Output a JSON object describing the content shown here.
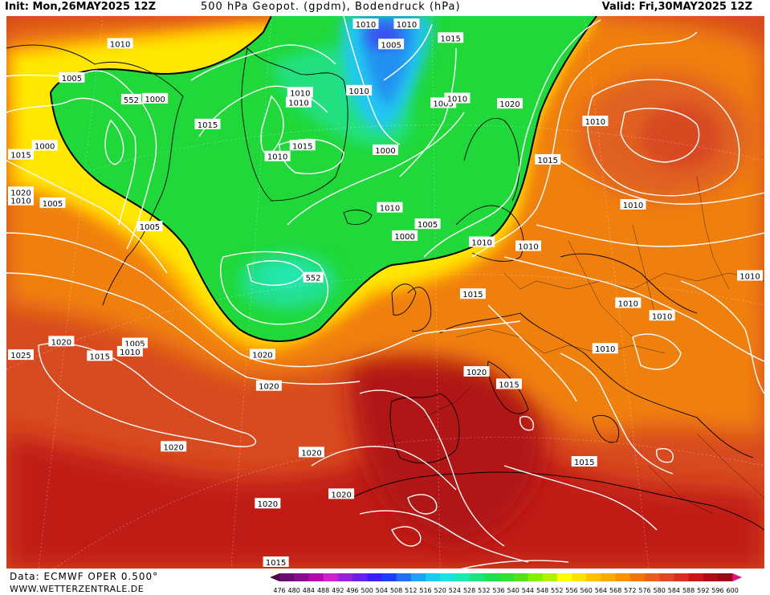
{
  "header": {
    "init": "Init: Mon,26MAY2025 12Z",
    "title": "500 hPa Geopot. (gpdm), Bodendruck (hPa)",
    "valid": "Valid: Fri,30MAY2025 12Z"
  },
  "footer": {
    "data_source": "Data: ECMWF OPER 0.500°",
    "website": "WWW.WETTERZENTRALE.DE"
  },
  "colorbar": {
    "values": [
      "476",
      "480",
      "484",
      "488",
      "492",
      "496",
      "500",
      "504",
      "508",
      "512",
      "516",
      "520",
      "524",
      "528",
      "532",
      "536",
      "540",
      "544",
      "548",
      "552",
      "556",
      "560",
      "564",
      "568",
      "572",
      "576",
      "580",
      "584",
      "588",
      "592",
      "596",
      "600"
    ],
    "colors": [
      "#4a0a4a",
      "#6a0a70",
      "#8a0a90",
      "#b00ab0",
      "#d020d0",
      "#9a20d8",
      "#6a20e8",
      "#3a20f0",
      "#2040f0",
      "#2070f0",
      "#20a0f0",
      "#20c8f0",
      "#20e0e0",
      "#20e8b0",
      "#20e080",
      "#20e050",
      "#30e030",
      "#50e020",
      "#80f000",
      "#b0f000",
      "#ffff00",
      "#ffe000",
      "#ffc000",
      "#ffa800",
      "#f89000",
      "#f07800",
      "#e86020",
      "#e04820",
      "#d83020",
      "#c81818",
      "#b00c18",
      "#980818",
      "#e01080"
    ]
  },
  "isobars": {
    "labels": [
      {
        "text": "1010",
        "lon": -70,
        "lat": 60
      },
      {
        "text": "552",
        "lon": -58,
        "lat": 58
      },
      {
        "text": "1005",
        "lon": -68,
        "lat": 54
      },
      {
        "text": "1000",
        "lon": -55,
        "lat": 60
      },
      {
        "text": "1015",
        "lon": -42,
        "lat": 62
      },
      {
        "text": "1000",
        "lon": -60,
        "lat": 48
      },
      {
        "text": "1005",
        "lon": -52,
        "lat": 45
      },
      {
        "text": "1015",
        "lon": -64,
        "lat": 42
      },
      {
        "text": "1010",
        "lon": -56,
        "lat": 42
      },
      {
        "text": "1020",
        "lon": -62,
        "lat": 37
      },
      {
        "text": "1010",
        "lon": -10,
        "lat": 81
      },
      {
        "text": "1010",
        "lon": -25,
        "lat": 70
      },
      {
        "text": "1010",
        "lon": -24,
        "lat": 69
      },
      {
        "text": "1015",
        "lon": -18,
        "lat": 65
      },
      {
        "text": "1010",
        "lon": -23,
        "lat": 63
      },
      {
        "text": "1010",
        "lon": -5,
        "lat": 72
      },
      {
        "text": "1005",
        "lon": 8,
        "lat": 77
      },
      {
        "text": "1000",
        "lon": 5,
        "lat": 66
      },
      {
        "text": "1005",
        "lon": -38,
        "lat": 50
      },
      {
        "text": "1005",
        "lon": -30,
        "lat": 39
      },
      {
        "text": "1010",
        "lon": -30,
        "lat": 38
      },
      {
        "text": "1015",
        "lon": -33,
        "lat": 36
      },
      {
        "text": "1020",
        "lon": -38,
        "lat": 35
      },
      {
        "text": "1025",
        "lon": -45,
        "lat": 28
      },
      {
        "text": "1020",
        "lon": -13,
        "lat": 43
      },
      {
        "text": "1020",
        "lon": -11,
        "lat": 40
      },
      {
        "text": "1020",
        "lon": -4,
        "lat": 34
      },
      {
        "text": "1020",
        "lon": -20,
        "lat": 31
      },
      {
        "text": "1020",
        "lon": 0,
        "lat": 30
      },
      {
        "text": "1020",
        "lon": -8,
        "lat": 28
      },
      {
        "text": "1015",
        "lon": -6,
        "lat": 22
      },
      {
        "text": "552",
        "lon": -8,
        "lat": 52
      },
      {
        "text": "1010",
        "lon": 6,
        "lat": 60
      },
      {
        "text": "1000",
        "lon": 9,
        "lat": 57
      },
      {
        "text": "1005",
        "lon": 14,
        "lat": 58
      },
      {
        "text": "1010",
        "lon": 26,
        "lat": 83
      },
      {
        "text": "1015",
        "lon": 38,
        "lat": 76
      },
      {
        "text": "1005",
        "lon": 25,
        "lat": 70
      },
      {
        "text": "1010",
        "lon": 30,
        "lat": 70
      },
      {
        "text": "1020",
        "lon": 44,
        "lat": 67
      },
      {
        "text": "1015",
        "lon": 44,
        "lat": 60
      },
      {
        "text": "1010",
        "lon": 58,
        "lat": 60
      },
      {
        "text": "1010",
        "lon": 24,
        "lat": 55
      },
      {
        "text": "1010",
        "lon": 32,
        "lat": 53
      },
      {
        "text": "1015",
        "lon": 20,
        "lat": 50
      },
      {
        "text": "1010",
        "lon": 52,
        "lat": 51
      },
      {
        "text": "1010",
        "lon": 42,
        "lat": 43
      },
      {
        "text": "1010",
        "lon": 36,
        "lat": 40
      },
      {
        "text": "1010",
        "lon": 45,
        "lat": 40
      },
      {
        "text": "1020",
        "lon": 18,
        "lat": 42
      },
      {
        "text": "1015",
        "lon": 22,
        "lat": 40
      },
      {
        "text": "1010",
        "lon": 58,
        "lat": 37
      },
      {
        "text": "1015",
        "lon": 28,
        "lat": 30
      }
    ]
  }
}
